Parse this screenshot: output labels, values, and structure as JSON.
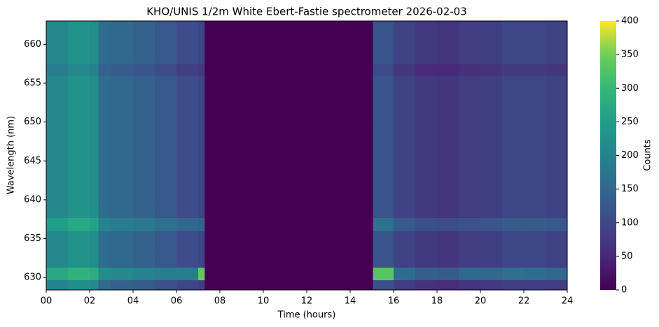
{
  "chart_data": {
    "type": "heatmap",
    "title": "KHO/UNIS 1/2m White Ebert-Fastie spectrometer 2026-02-03",
    "xlabel": "Time (hours)",
    "ylabel": "Wavelength (nm)",
    "colorbar_label": "Counts",
    "colormap": "viridis",
    "x_edges": [
      0,
      1,
      2,
      2.4,
      3,
      4,
      5,
      6,
      7,
      7.3,
      15.05,
      16,
      17,
      18,
      19,
      20,
      21,
      22,
      23,
      24
    ],
    "y_edges": [
      628.4,
      629.7,
      631.3,
      633,
      636,
      637.7,
      640,
      645,
      650,
      656,
      657.5,
      663
    ],
    "values": [
      [
        200,
        220,
        210,
        150,
        140,
        130,
        115,
        95,
        85,
        0,
        110,
        80,
        65,
        60,
        70,
        75,
        85,
        85,
        80
      ],
      [
        270,
        290,
        280,
        220,
        210,
        200,
        190,
        190,
        340,
        0,
        330,
        160,
        135,
        130,
        150,
        150,
        165,
        160,
        150
      ],
      [
        210,
        230,
        220,
        160,
        150,
        140,
        125,
        105,
        95,
        0,
        120,
        90,
        75,
        70,
        80,
        85,
        95,
        95,
        90
      ],
      [
        210,
        230,
        220,
        160,
        150,
        140,
        125,
        105,
        95,
        0,
        120,
        90,
        75,
        70,
        80,
        85,
        95,
        95,
        90
      ],
      [
        250,
        270,
        260,
        200,
        190,
        180,
        165,
        150,
        140,
        0,
        170,
        125,
        110,
        105,
        115,
        120,
        130,
        130,
        125
      ],
      [
        210,
        230,
        220,
        160,
        150,
        140,
        125,
        105,
        95,
        0,
        120,
        90,
        75,
        70,
        80,
        85,
        95,
        95,
        90
      ],
      [
        210,
        230,
        220,
        160,
        150,
        140,
        125,
        105,
        95,
        0,
        120,
        90,
        75,
        70,
        80,
        85,
        95,
        95,
        90
      ],
      [
        210,
        230,
        220,
        160,
        150,
        140,
        125,
        105,
        95,
        0,
        120,
        90,
        75,
        70,
        80,
        85,
        95,
        95,
        90
      ],
      [
        210,
        230,
        220,
        160,
        150,
        140,
        125,
        105,
        95,
        0,
        120,
        90,
        75,
        70,
        80,
        85,
        95,
        95,
        90
      ],
      [
        190,
        210,
        200,
        140,
        130,
        120,
        105,
        85,
        75,
        0,
        100,
        70,
        55,
        50,
        60,
        65,
        75,
        75,
        70
      ],
      [
        210,
        230,
        220,
        160,
        150,
        140,
        125,
        105,
        95,
        0,
        120,
        90,
        75,
        70,
        80,
        85,
        95,
        95,
        90
      ]
    ],
    "xlim": [
      0,
      24
    ],
    "xticks": [
      {
        "value": 0,
        "label": "00"
      },
      {
        "value": 2,
        "label": "02"
      },
      {
        "value": 4,
        "label": "04"
      },
      {
        "value": 6,
        "label": "06"
      },
      {
        "value": 8,
        "label": "08"
      },
      10,
      12,
      14,
      16,
      18,
      20,
      22,
      24
    ],
    "ylim": [
      628.4,
      663
    ],
    "yticks": [
      630,
      635,
      640,
      645,
      650,
      655,
      660
    ],
    "clim": [
      0,
      400
    ],
    "cticks": [
      0,
      50,
      100,
      150,
      200,
      250,
      300,
      350,
      400
    ]
  }
}
